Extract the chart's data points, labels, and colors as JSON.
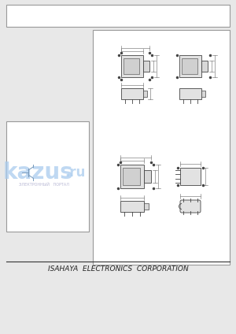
{
  "bg_color": "#e8e8e8",
  "page_bg": "#ffffff",
  "footer_text": "ISAHAYA  ELECTRONICS  CORPORATION",
  "footer_fontsize": 6.5,
  "watermark_text1": "kazus",
  "watermark_text2": ".ru",
  "watermark_sub": "ЭЛЕКТРОННЫЙ   ПОРТАЛ",
  "panel_bg": "#f8f8f8",
  "border_color": "#999999",
  "line_color": "#444444",
  "dim_color": "#666666"
}
